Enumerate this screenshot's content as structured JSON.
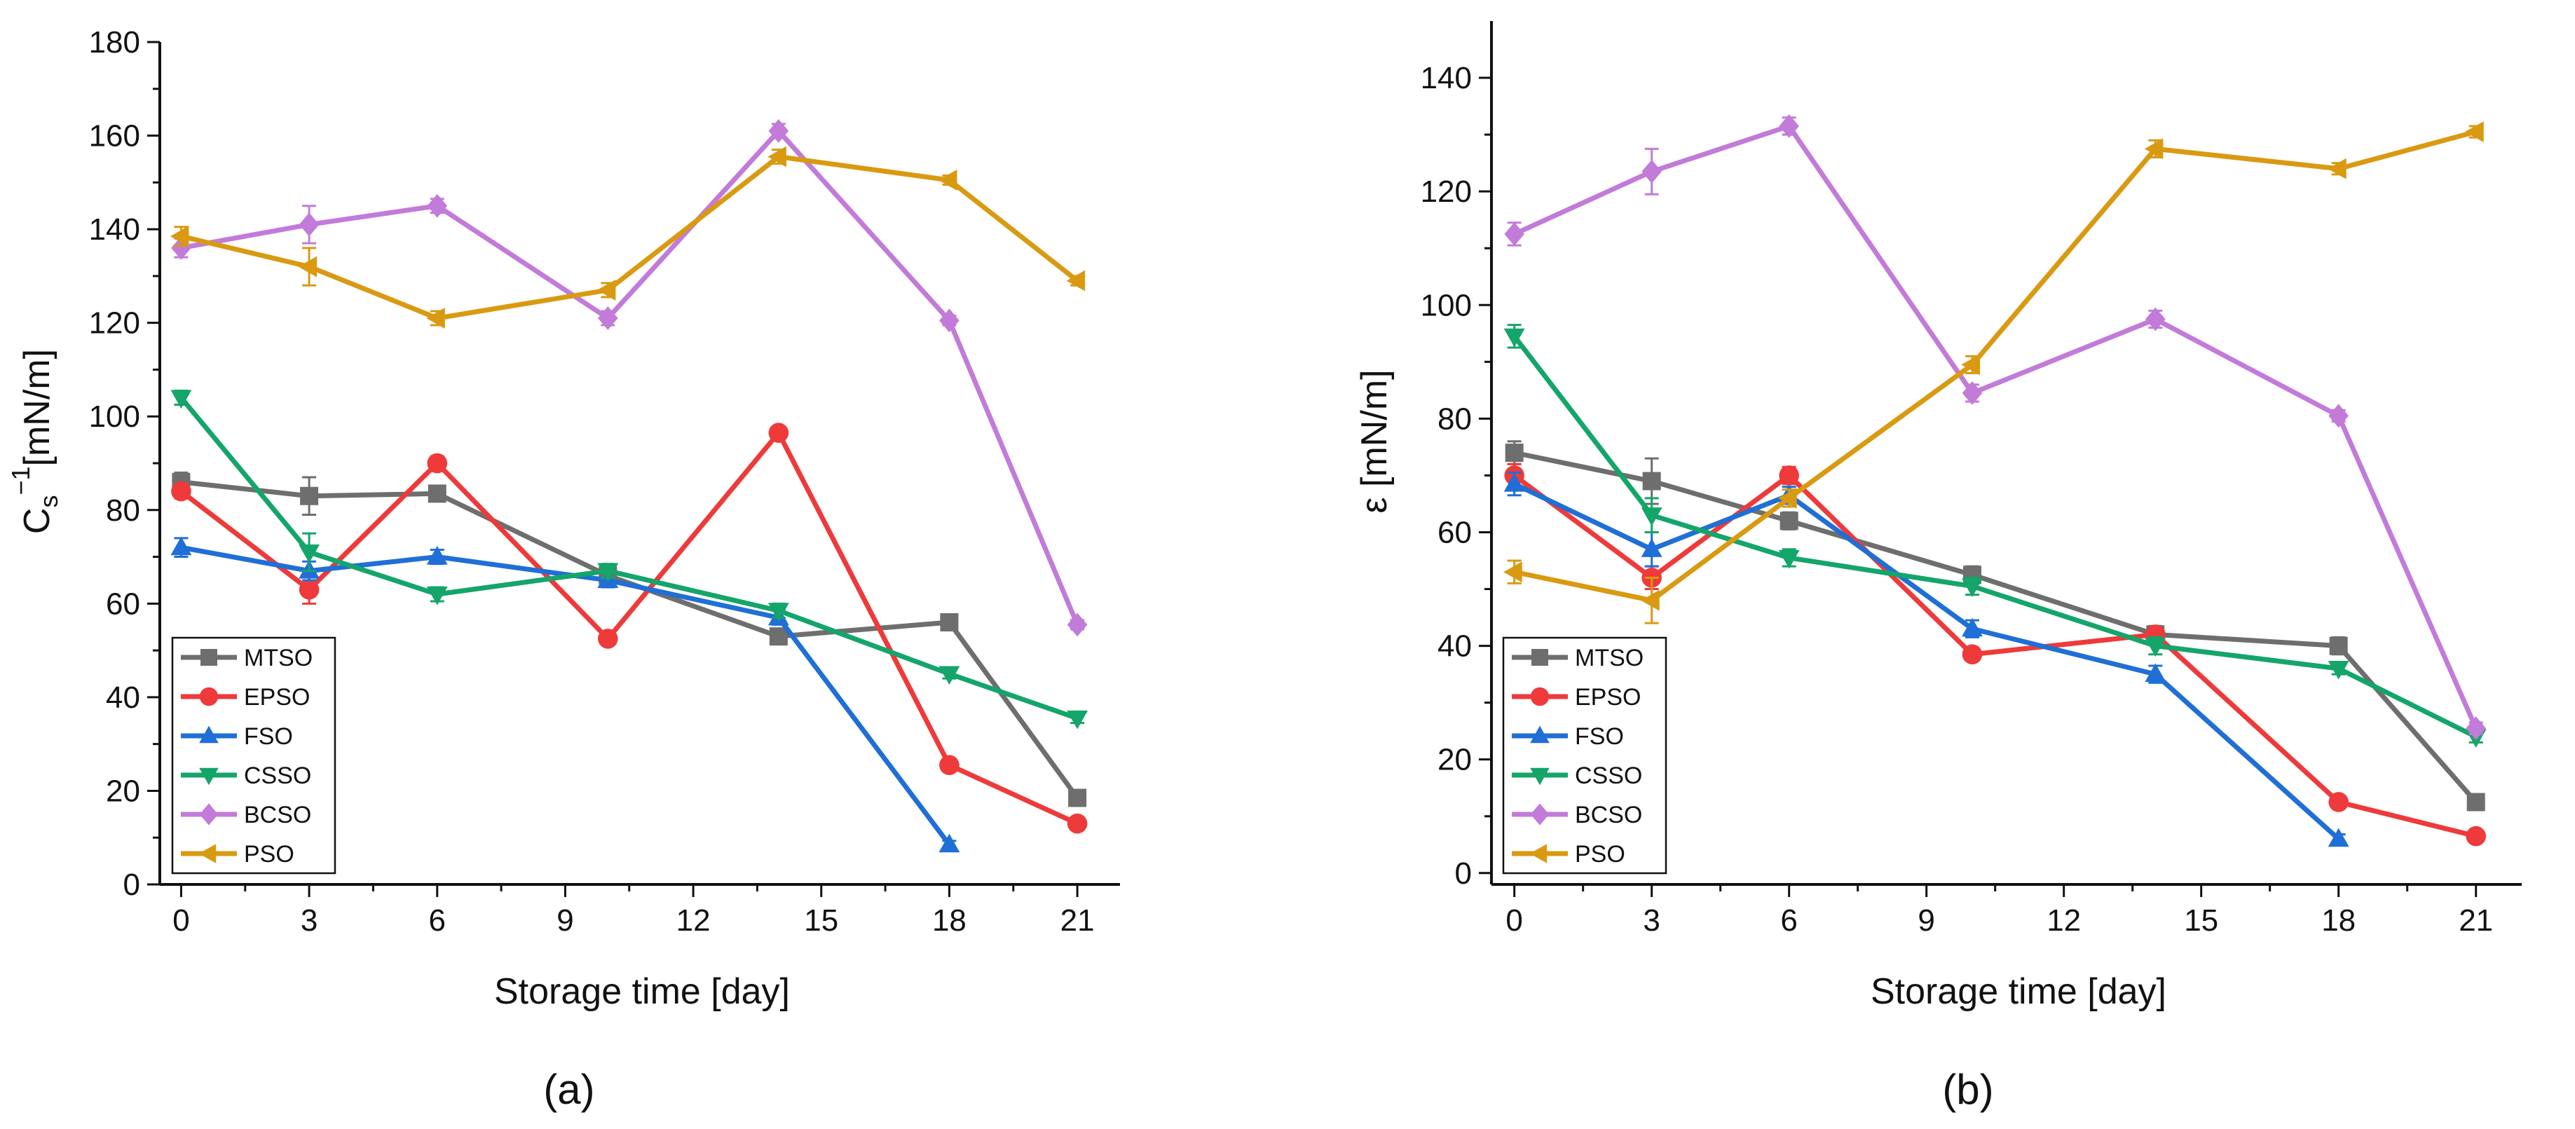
{
  "chart_data": [
    {
      "type": "line",
      "panel_label": "(a)",
      "xlabel": "Storage time [day]",
      "ylabel_main": "C",
      "ylabel_sub": "s",
      "ylabel_sup": "−1",
      "ylabel_rest": "[mN/m]",
      "xlim": [
        -0.5,
        22
      ],
      "ylim": [
        0,
        180
      ],
      "x_ticks": [
        "0",
        "3",
        "6",
        "9",
        "12",
        "15",
        "18",
        "21"
      ],
      "y_ticks": [
        "0",
        "20",
        "40",
        "60",
        "80",
        "100",
        "120",
        "140",
        "160",
        "180"
      ],
      "legend_position": "bottom-left",
      "series": [
        {
          "name": "MTSO",
          "color": "#6e6e6e",
          "marker": "square",
          "x": [
            0,
            3,
            6,
            10,
            14,
            18,
            21
          ],
          "y": [
            86,
            83,
            83.5,
            66,
            53,
            56,
            18.5
          ],
          "err": [
            2,
            4,
            1.5,
            1.5,
            1.5,
            1.5,
            1
          ]
        },
        {
          "name": "EPSO",
          "color": "#ee3a3a",
          "marker": "circle",
          "x": [
            0,
            3,
            6,
            10,
            14,
            18,
            21
          ],
          "y": [
            84,
            63,
            90,
            52.5,
            96.5,
            25.5,
            13
          ],
          "err": [
            1.5,
            3,
            1.5,
            1,
            1,
            1,
            1
          ]
        },
        {
          "name": "FSO",
          "color": "#1f6fd6",
          "marker": "triangle-up",
          "x": [
            0,
            3,
            6,
            10,
            14,
            18
          ],
          "y": [
            72,
            67,
            70,
            65,
            57,
            8.5
          ],
          "err": [
            2,
            2,
            1.5,
            1.5,
            1.5,
            0.8
          ]
        },
        {
          "name": "CSSO",
          "color": "#14a56a",
          "marker": "triangle-down",
          "x": [
            0,
            3,
            6,
            10,
            14,
            18,
            21
          ],
          "y": [
            104,
            71,
            62,
            67,
            58.5,
            45,
            35.5
          ],
          "err": [
            1.5,
            4,
            1.5,
            1.5,
            1.5,
            1,
            1
          ]
        },
        {
          "name": "BCSO",
          "color": "#c27bd9",
          "marker": "diamond",
          "x": [
            0,
            3,
            6,
            10,
            14,
            18,
            21
          ],
          "y": [
            136,
            141,
            145,
            121,
            161,
            120.5,
            55.5
          ],
          "err": [
            2,
            4,
            1.5,
            1.5,
            1.5,
            1,
            1
          ]
        },
        {
          "name": "PSO",
          "color": "#d99a12",
          "marker": "triangle-left",
          "x": [
            0,
            3,
            6,
            10,
            14,
            18,
            21
          ],
          "y": [
            138.5,
            132,
            121,
            127,
            155.5,
            150.5,
            129
          ],
          "err": [
            2,
            4,
            1.5,
            1.5,
            1.5,
            1,
            1
          ]
        }
      ]
    },
    {
      "type": "line",
      "panel_label": "(b)",
      "xlabel": "Storage time [day]",
      "ylabel_main": "ε [mN/m]",
      "xlim": [
        -0.5,
        22
      ],
      "ylim": [
        -2,
        150
      ],
      "x_ticks": [
        "0",
        "3",
        "6",
        "9",
        "12",
        "15",
        "18",
        "21"
      ],
      "y_ticks": [
        "0",
        "20",
        "40",
        "60",
        "80",
        "100",
        "120",
        "140"
      ],
      "legend_position": "bottom-left",
      "series": [
        {
          "name": "MTSO",
          "color": "#6e6e6e",
          "marker": "square",
          "x": [
            0,
            3,
            6,
            10,
            14,
            18,
            21
          ],
          "y": [
            74,
            69,
            62,
            52.5,
            42,
            40,
            12.5
          ],
          "err": [
            2,
            4,
            1.5,
            1.5,
            1.5,
            1.5,
            1
          ]
        },
        {
          "name": "EPSO",
          "color": "#ee3a3a",
          "marker": "circle",
          "x": [
            0,
            3,
            6,
            10,
            14,
            18,
            21
          ],
          "y": [
            70,
            52,
            70,
            38.5,
            42,
            12.5,
            6.5
          ],
          "err": [
            2,
            2,
            1.5,
            1,
            1,
            1,
            1
          ]
        },
        {
          "name": "FSO",
          "color": "#1f6fd6",
          "marker": "triangle-up",
          "x": [
            0,
            3,
            6,
            10,
            14,
            18
          ],
          "y": [
            68.5,
            57,
            66.5,
            43,
            35,
            6
          ],
          "err": [
            2,
            3,
            1.5,
            1.5,
            1.5,
            0.8
          ]
        },
        {
          "name": "CSSO",
          "color": "#14a56a",
          "marker": "triangle-down",
          "x": [
            0,
            3,
            6,
            10,
            14,
            18,
            21
          ],
          "y": [
            94.5,
            63,
            55.5,
            50.5,
            40,
            36,
            24
          ],
          "err": [
            2,
            3,
            1.5,
            1.5,
            1.5,
            1,
            1
          ]
        },
        {
          "name": "BCSO",
          "color": "#c27bd9",
          "marker": "diamond",
          "x": [
            0,
            3,
            6,
            10,
            14,
            18,
            21
          ],
          "y": [
            112.5,
            123.5,
            131.5,
            84.5,
            97.5,
            80.5,
            25.5
          ],
          "err": [
            2,
            4,
            1.5,
            1.5,
            1.5,
            1,
            1
          ]
        },
        {
          "name": "PSO",
          "color": "#d99a12",
          "marker": "triangle-left",
          "x": [
            0,
            3,
            6,
            10,
            14,
            18,
            21
          ],
          "y": [
            53,
            48,
            66,
            89.5,
            127.5,
            124,
            130.5
          ],
          "err": [
            2,
            4,
            1.5,
            1.5,
            1.5,
            1,
            1
          ]
        }
      ]
    }
  ]
}
